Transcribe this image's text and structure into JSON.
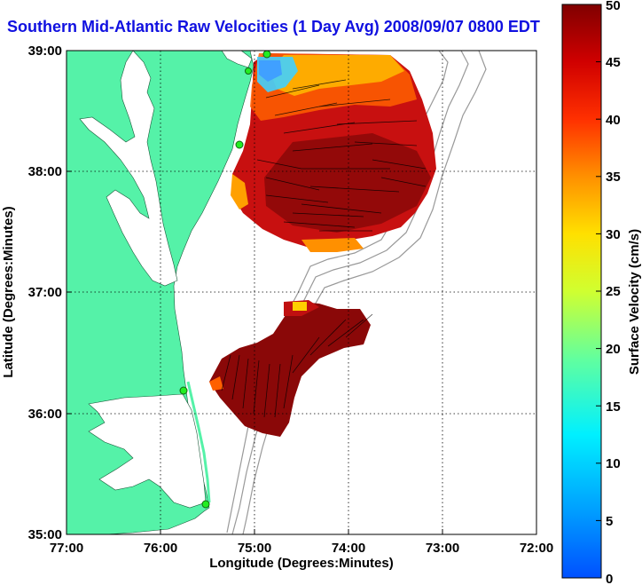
{
  "title": "Southern Mid-Atlantic Raw Velocities (1 Day Avg) 2008/09/07 0800 EDT",
  "map": {
    "xlabel": "Longitude (Degrees:Minutes)",
    "ylabel": "Latitude (Degrees:Minutes)",
    "x_ticks": [
      "77:00",
      "76:00",
      "75:00",
      "74:00",
      "73:00",
      "72:00"
    ],
    "y_ticks": [
      "39:00",
      "38:00",
      "37:00",
      "36:00",
      "35:00"
    ],
    "lon_range": [
      -77,
      -72
    ],
    "lat_range": [
      35,
      39
    ],
    "grid": "dotted",
    "land_color": "#55f2a8",
    "water_color": "#ffffff",
    "bathymetry_color": "#999999"
  },
  "colorbar": {
    "label": "Surface Velocity (cm/s)",
    "ticks": [
      "0",
      "5",
      "10",
      "15",
      "20",
      "25",
      "30",
      "35",
      "40",
      "45",
      "50"
    ],
    "range": [
      0,
      50
    ],
    "colormap": "jet"
  }
}
